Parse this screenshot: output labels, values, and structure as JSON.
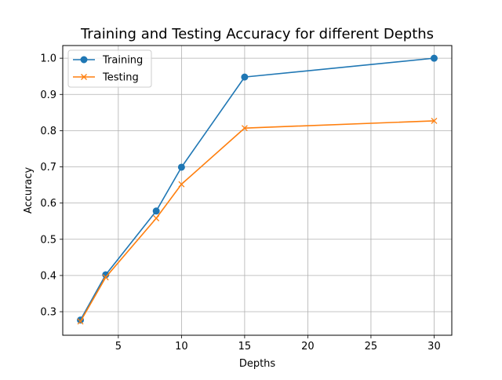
{
  "chart_data": {
    "type": "line",
    "title": "Training and Testing Accuracy for different Depths",
    "xlabel": "Depths",
    "ylabel": "Accuracy",
    "xlim": [
      0.6,
      31.4
    ],
    "ylim": [
      0.235,
      1.035
    ],
    "xticks": [
      5,
      10,
      15,
      20,
      25,
      30
    ],
    "yticks": [
      0.3,
      0.4,
      0.5,
      0.6,
      0.7,
      0.8,
      0.9,
      1.0
    ],
    "grid": true,
    "legend_position": "top-left",
    "x": [
      2,
      4,
      8,
      10,
      15,
      30
    ],
    "series": [
      {
        "name": "Training",
        "values": [
          0.277,
          0.402,
          0.578,
          0.699,
          0.948,
          1.0
        ],
        "color": "#1f77b4",
        "marker": "circle"
      },
      {
        "name": "Testing",
        "values": [
          0.273,
          0.395,
          0.558,
          0.652,
          0.807,
          0.827
        ],
        "color": "#ff7f0e",
        "marker": "x"
      }
    ]
  }
}
